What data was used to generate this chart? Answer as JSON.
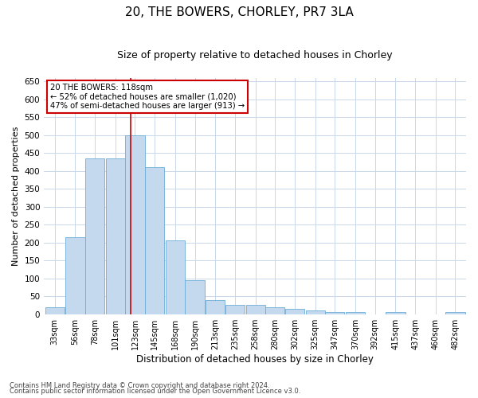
{
  "title1": "20, THE BOWERS, CHORLEY, PR7 3LA",
  "title2": "Size of property relative to detached houses in Chorley",
  "xlabel": "Distribution of detached houses by size in Chorley",
  "ylabel": "Number of detached properties",
  "footer1": "Contains HM Land Registry data © Crown copyright and database right 2024.",
  "footer2": "Contains public sector information licensed under the Open Government Licence v3.0.",
  "annotation_line1": "20 THE BOWERS: 118sqm",
  "annotation_line2": "← 52% of detached houses are smaller (1,020)",
  "annotation_line3": "47% of semi-detached houses are larger (913) →",
  "bar_color": "#c5d9ee",
  "bar_edge_color": "#6baed6",
  "ref_line_color": "#cc0000",
  "ref_line_x": 118,
  "annotation_box_color": "#cc0000",
  "categories": [
    33,
    56,
    78,
    101,
    123,
    145,
    168,
    190,
    213,
    235,
    258,
    280,
    302,
    325,
    347,
    370,
    392,
    415,
    437,
    460,
    482
  ],
  "cat_labels": [
    "33sqm",
    "56sqm",
    "78sqm",
    "101sqm",
    "123sqm",
    "145sqm",
    "168sqm",
    "190sqm",
    "213sqm",
    "235sqm",
    "258sqm",
    "280sqm",
    "302sqm",
    "325sqm",
    "347sqm",
    "370sqm",
    "392sqm",
    "415sqm",
    "437sqm",
    "460sqm",
    "482sqm"
  ],
  "values": [
    20,
    215,
    435,
    435,
    500,
    410,
    205,
    95,
    40,
    25,
    25,
    20,
    15,
    10,
    5,
    5,
    0,
    5,
    0,
    0,
    5
  ],
  "ylim": [
    0,
    660
  ],
  "yticks": [
    0,
    50,
    100,
    150,
    200,
    250,
    300,
    350,
    400,
    450,
    500,
    550,
    600,
    650
  ],
  "bin_width": 22,
  "title1_fontsize": 11,
  "title2_fontsize": 9,
  "ylabel_fontsize": 8,
  "xlabel_fontsize": 8.5,
  "tick_fontsize": 7.5,
  "xtick_fontsize": 7,
  "footer_fontsize": 6
}
